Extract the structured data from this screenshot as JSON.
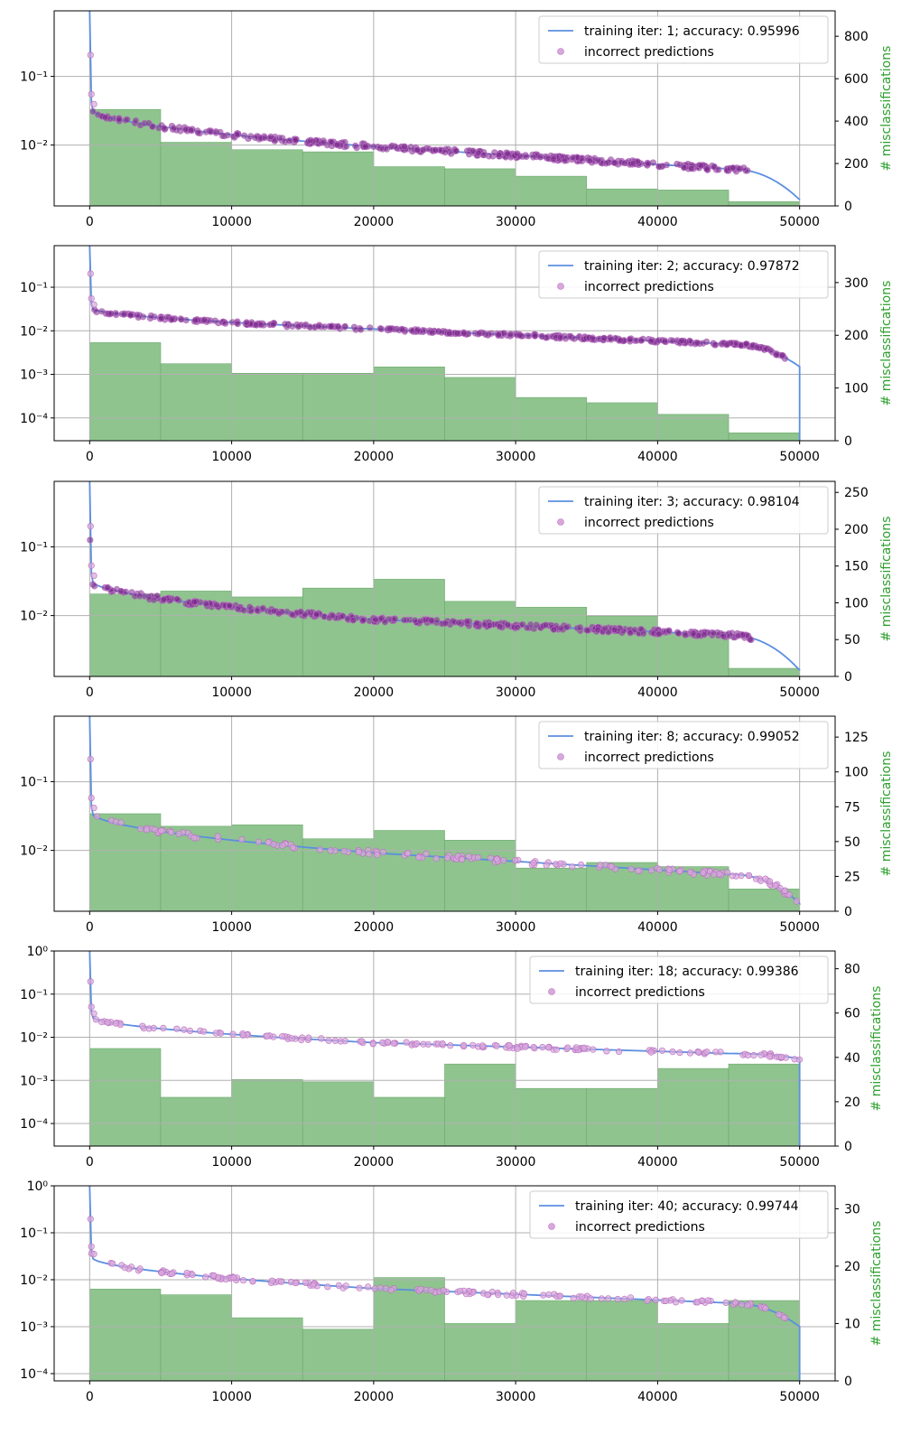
{
  "colors": {
    "line": "#5b8fe0",
    "scatter_fill": "#d8a8dc",
    "scatter_edge": "#b870c0",
    "hist": "#8fc48f",
    "hist_edge": "#6aa86a",
    "right_label": "#2ca02c",
    "grid": "#b0b0b0"
  },
  "chart_data": [
    {
      "type": "histogram+line+scatter",
      "legend_position": "top-right",
      "grid": true,
      "line_label": "training iter: 1; accuracy: 0.95996",
      "scatter_label": "incorrect predictions",
      "x_ticks": [
        "0",
        "10000",
        "20000",
        "30000",
        "40000",
        "50000"
      ],
      "xlim": [
        -2500,
        52500
      ],
      "left_axis": {
        "scale": "log",
        "ylim": [
          0.0013,
          0.9
        ],
        "ticks": [
          {
            "value": 0.1,
            "label": "10⁻¹"
          },
          {
            "value": 0.01,
            "label": "10⁻²"
          }
        ]
      },
      "right_axis": {
        "label": "# misclassifications",
        "ylim": [
          0,
          920
        ],
        "ticks": [
          "0",
          "200",
          "400",
          "600",
          "800"
        ]
      },
      "curve": {
        "start": 0.9,
        "knee": 0.033,
        "mid": 0.0095,
        "late": 0.0045,
        "end": 0.0016
      },
      "histogram": {
        "bin_edges": [
          0,
          5000,
          10000,
          15000,
          20000,
          25000,
          30000,
          35000,
          40000,
          45000,
          50000
        ],
        "counts": [
          455,
          300,
          265,
          255,
          185,
          175,
          140,
          80,
          75,
          20
        ]
      },
      "scatter_dense": true,
      "scatter_last_x": 46500
    },
    {
      "type": "histogram+line+scatter",
      "legend_position": "top-right",
      "grid": true,
      "line_label": "training iter: 2; accuracy: 0.97872",
      "scatter_label": "incorrect predictions",
      "x_ticks": [
        "0",
        "10000",
        "20000",
        "30000",
        "40000",
        "50000"
      ],
      "xlim": [
        -2500,
        52500
      ],
      "left_axis": {
        "scale": "log",
        "ylim": [
          3e-05,
          0.9
        ],
        "ticks": [
          {
            "value": 0.1,
            "label": "10⁻¹"
          },
          {
            "value": 0.01,
            "label": "10⁻²"
          },
          {
            "value": 0.001,
            "label": "10⁻³"
          },
          {
            "value": 0.0001,
            "label": "10⁻⁴"
          }
        ]
      },
      "right_axis": {
        "label": "# misclassifications",
        "ylim": [
          0,
          370
        ],
        "ticks": [
          "0",
          "100",
          "200",
          "300"
        ]
      },
      "curve": {
        "start": 0.9,
        "knee": 0.033,
        "mid": 0.011,
        "late": 0.005,
        "end": 0.0015
      },
      "histogram": {
        "bin_edges": [
          0,
          5000,
          10000,
          15000,
          20000,
          25000,
          30000,
          35000,
          40000,
          45000,
          50000
        ],
        "counts": [
          186,
          146,
          128,
          128,
          140,
          120,
          82,
          72,
          50,
          15
        ]
      },
      "scatter_dense": true,
      "scatter_last_x": 49000
    },
    {
      "type": "histogram+line+scatter",
      "legend_position": "top-right",
      "grid": true,
      "line_label": "training iter: 3; accuracy: 0.98104",
      "scatter_label": "incorrect predictions",
      "x_ticks": [
        "0",
        "10000",
        "20000",
        "30000",
        "40000",
        "50000"
      ],
      "xlim": [
        -2500,
        52500
      ],
      "left_axis": {
        "scale": "log",
        "ylim": [
          0.0013,
          0.9
        ],
        "ticks": [
          {
            "value": 0.1,
            "label": "10⁻¹"
          },
          {
            "value": 0.01,
            "label": "10⁻²"
          }
        ]
      },
      "right_axis": {
        "label": "# misclassifications",
        "ylim": [
          0,
          265
        ],
        "ticks": [
          "0",
          "50",
          "100",
          "150",
          "200",
          "250"
        ]
      },
      "curve": {
        "start": 0.9,
        "knee": 0.032,
        "mid": 0.0088,
        "late": 0.0052,
        "end": 0.0016
      },
      "histogram": {
        "bin_edges": [
          0,
          5000,
          10000,
          15000,
          20000,
          25000,
          30000,
          35000,
          40000,
          45000,
          50000
        ],
        "counts": [
          112,
          116,
          108,
          120,
          132,
          102,
          94,
          82,
          60,
          11
        ]
      },
      "scatter_dense": true,
      "scatter_last_x": 47000
    },
    {
      "type": "histogram+line+scatter",
      "legend_position": "top-right",
      "grid": true,
      "line_label": "training iter: 8; accuracy: 0.99052",
      "scatter_label": "incorrect predictions",
      "x_ticks": [
        "0",
        "10000",
        "20000",
        "30000",
        "40000",
        "50000"
      ],
      "xlim": [
        -2500,
        52500
      ],
      "left_axis": {
        "scale": "log",
        "ylim": [
          0.0013,
          0.9
        ],
        "ticks": [
          {
            "value": 0.1,
            "label": "10⁻¹"
          },
          {
            "value": 0.01,
            "label": "10⁻²"
          }
        ]
      },
      "right_axis": {
        "label": "# misclassifications",
        "ylim": [
          0,
          140
        ],
        "ticks": [
          "0",
          "25",
          "50",
          "75",
          "100",
          "125"
        ]
      },
      "curve": {
        "start": 0.9,
        "knee": 0.035,
        "mid": 0.0092,
        "late": 0.0045,
        "end": 0.0017
      },
      "histogram": {
        "bin_edges": [
          0,
          5000,
          10000,
          15000,
          20000,
          25000,
          30000,
          35000,
          40000,
          45000,
          50000
        ],
        "counts": [
          70,
          61,
          62,
          52,
          58,
          51,
          31,
          35,
          32,
          16
        ]
      },
      "scatter_dense": false,
      "scatter_last_x": 50000
    },
    {
      "type": "histogram+line+scatter",
      "legend_position": "top-right",
      "grid": true,
      "line_label": "training iter: 18; accuracy: 0.99386",
      "scatter_label": "incorrect predictions",
      "x_ticks": [
        "0",
        "10000",
        "20000",
        "30000",
        "40000",
        "50000"
      ],
      "xlim": [
        -2500,
        52500
      ],
      "left_axis": {
        "scale": "log",
        "ylim": [
          3e-05,
          1.0
        ],
        "ticks": [
          {
            "value": 1,
            "label": "10⁰"
          },
          {
            "value": 0.1,
            "label": "10⁻¹"
          },
          {
            "value": 0.01,
            "label": "10⁻²"
          },
          {
            "value": 0.001,
            "label": "10⁻³"
          },
          {
            "value": 0.0001,
            "label": "10⁻⁴"
          }
        ]
      },
      "right_axis": {
        "label": "# misclassifications",
        "ylim": [
          0,
          88
        ],
        "ticks": [
          "0",
          "20",
          "40",
          "60",
          "80"
        ]
      },
      "curve": {
        "start": 1.0,
        "knee": 0.03,
        "mid": 0.0075,
        "late": 0.0042,
        "end": 0.0032
      },
      "histogram": {
        "bin_edges": [
          0,
          5000,
          10000,
          15000,
          20000,
          25000,
          30000,
          35000,
          40000,
          45000,
          50000
        ],
        "counts": [
          44,
          22,
          30,
          29,
          22,
          37,
          26,
          26,
          35,
          37
        ]
      },
      "scatter_dense": false,
      "scatter_last_x": 50000
    },
    {
      "type": "histogram+line+scatter",
      "legend_position": "top-right",
      "grid": true,
      "line_label": "training iter: 40; accuracy: 0.99744",
      "scatter_label": "incorrect predictions",
      "x_ticks": [
        "0",
        "10000",
        "20000",
        "30000",
        "40000",
        "50000"
      ],
      "xlim": [
        -2500,
        52500
      ],
      "left_axis": {
        "scale": "log",
        "ylim": [
          7e-05,
          1.0
        ],
        "ticks": [
          {
            "value": 1,
            "label": "10⁰"
          },
          {
            "value": 0.1,
            "label": "10⁻¹"
          },
          {
            "value": 0.01,
            "label": "10⁻²"
          },
          {
            "value": 0.001,
            "label": "10⁻³"
          },
          {
            "value": 0.0001,
            "label": "10⁻⁴"
          }
        ]
      },
      "right_axis": {
        "label": "# misclassifications",
        "ylim": [
          0,
          34
        ],
        "ticks": [
          "0",
          "10",
          "20",
          "30"
        ]
      },
      "curve": {
        "start": 1.0,
        "knee": 0.03,
        "mid": 0.0065,
        "late": 0.0032,
        "end": 0.001
      },
      "histogram": {
        "bin_edges": [
          0,
          5000,
          10000,
          15000,
          20000,
          25000,
          30000,
          35000,
          40000,
          45000,
          50000
        ],
        "counts": [
          16,
          15,
          11,
          9,
          18,
          10,
          14,
          14,
          10,
          14
        ]
      },
      "scatter_dense": false,
      "scatter_last_x": 50000
    }
  ]
}
